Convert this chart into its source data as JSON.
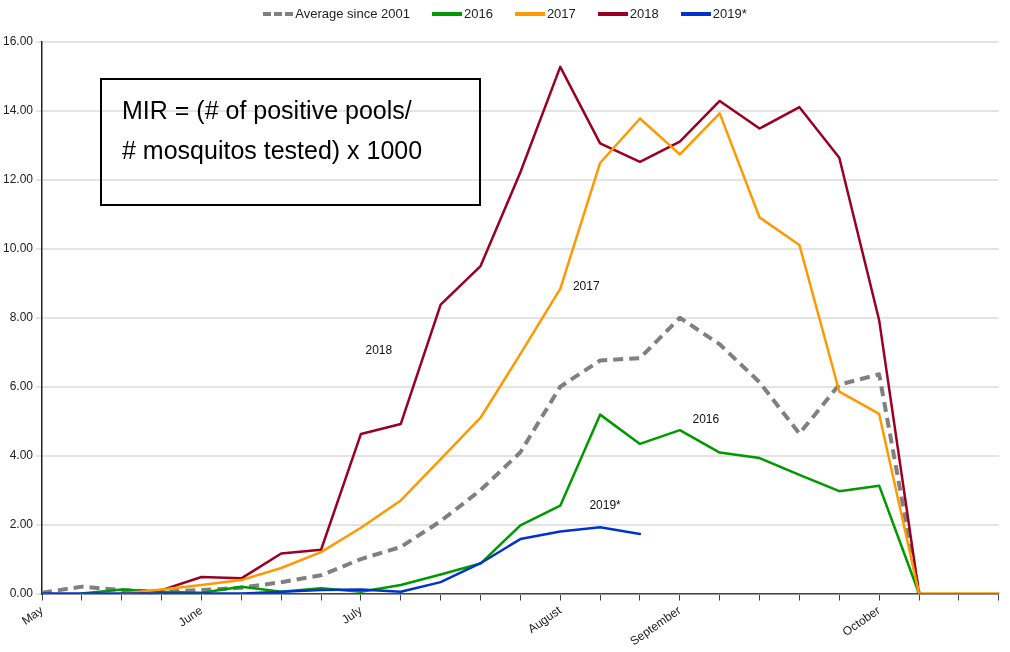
{
  "chart_data": {
    "type": "line",
    "categories": [
      "May",
      null,
      null,
      null,
      "June",
      null,
      null,
      null,
      "July",
      null,
      null,
      null,
      null,
      "August",
      null,
      null,
      "September",
      null,
      null,
      null,
      null,
      "October",
      null,
      null,
      null
    ],
    "series": [
      {
        "name": "Average since 2001",
        "color": "#808080",
        "line_style": "dashed",
        "values": [
          0.02,
          0.2,
          0.1,
          0.05,
          0.1,
          0.17,
          0.33,
          0.53,
          1.0,
          1.35,
          2.1,
          3.0,
          4.1,
          6.0,
          6.76,
          6.83,
          8.0,
          7.23,
          6.13,
          4.64,
          6.06,
          6.36,
          0,
          null,
          null
        ]
      },
      {
        "name": "2016",
        "color": "#009900",
        "values": [
          null,
          0,
          0.12,
          0.05,
          0.02,
          0.2,
          0.05,
          0.15,
          0.05,
          0.25,
          0.55,
          0.87,
          1.98,
          2.55,
          5.19,
          4.34,
          4.74,
          4.09,
          3.93,
          3.44,
          2.97,
          3.13,
          0,
          null,
          null
        ]
      },
      {
        "name": "2017",
        "color": "#ff9900",
        "values": [
          null,
          null,
          0,
          0.12,
          0.25,
          0.39,
          0.74,
          1.2,
          1.91,
          2.7,
          3.9,
          5.1,
          6.95,
          8.84,
          12.49,
          13.78,
          12.74,
          13.93,
          10.91,
          10.11,
          5.86,
          5.21,
          0,
          0,
          0
        ]
      },
      {
        "name": "2018",
        "color": "#990022",
        "values": [
          null,
          null,
          0,
          0.1,
          0.48,
          0.44,
          1.16,
          1.27,
          4.63,
          4.92,
          8.38,
          9.5,
          12.22,
          15.28,
          13.06,
          12.52,
          13.11,
          14.29,
          13.49,
          14.11,
          12.64,
          7.93,
          0,
          null,
          null
        ]
      },
      {
        "name": "2019*",
        "color": "#0033cc",
        "values": [
          0,
          0,
          0,
          0,
          0,
          0,
          0.05,
          0.1,
          0.12,
          0.05,
          0.33,
          0.88,
          1.58,
          1.8,
          1.92,
          1.73,
          null,
          null,
          null,
          null,
          null,
          null,
          null,
          null,
          null
        ]
      }
    ],
    "ylim": [
      0,
      16
    ],
    "yticks": [
      {
        "value": 0,
        "label": "0.00"
      },
      {
        "value": 2,
        "label": "2.00"
      },
      {
        "value": 4,
        "label": "4.00"
      },
      {
        "value": 6,
        "label": "6.00"
      },
      {
        "value": 8,
        "label": "8.00"
      },
      {
        "value": 10,
        "label": "10.00"
      },
      {
        "value": 12,
        "label": "12.00"
      },
      {
        "value": 14,
        "label": "14.00"
      },
      {
        "value": 16,
        "label": "16.00"
      }
    ],
    "grid": "y",
    "legend": "top",
    "marker": "none",
    "line_style": "solid",
    "annotations": [
      "MIR = (# of positive pools/\n# mosquitos tested) x 1000"
    ]
  }
}
